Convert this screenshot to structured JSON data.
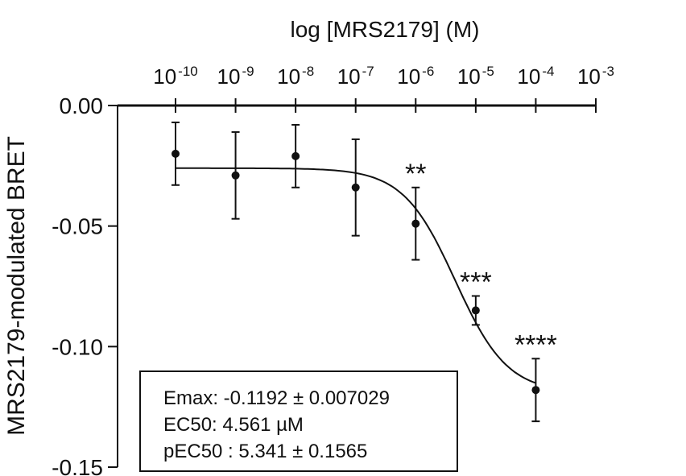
{
  "chart_data": {
    "type": "scatter",
    "xlabel": "log [MRS2179] (M)",
    "ylabel": "MRS2179-modulated BRET",
    "xscale": "log",
    "xlim": [
      -10,
      -3
    ],
    "ylim": [
      -0.15,
      0.0
    ],
    "x_ticks": [
      {
        "base": "10",
        "exp": "-10"
      },
      {
        "base": "10",
        "exp": "-9"
      },
      {
        "base": "10",
        "exp": "-8"
      },
      {
        "base": "10",
        "exp": "-7"
      },
      {
        "base": "10",
        "exp": "-6"
      },
      {
        "base": "10",
        "exp": "-5"
      },
      {
        "base": "10",
        "exp": "-4"
      },
      {
        "base": "10",
        "exp": "-3"
      }
    ],
    "y_ticks": [
      "0.00",
      "-0.05",
      "-0.10",
      "-0.15"
    ],
    "x_axis_position": "top",
    "grid": false,
    "points": [
      {
        "log_x": -10,
        "y": -0.02,
        "err": 0.013,
        "sig": ""
      },
      {
        "log_x": -9,
        "y": -0.029,
        "err": 0.018,
        "sig": ""
      },
      {
        "log_x": -8,
        "y": -0.021,
        "err": 0.013,
        "sig": ""
      },
      {
        "log_x": -7,
        "y": -0.034,
        "err": 0.02,
        "sig": ""
      },
      {
        "log_x": -6,
        "y": -0.049,
        "err": 0.015,
        "sig": "**"
      },
      {
        "log_x": -5,
        "y": -0.085,
        "err": 0.006,
        "sig": "***"
      },
      {
        "log_x": -4,
        "y": -0.118,
        "err": 0.013,
        "sig": "****"
      }
    ],
    "fit": {
      "bottom": -0.1192,
      "top": -0.026,
      "log_ec50": -5.341
    },
    "stats": [
      "Emax: -0.1192 ± 0.007029",
      "EC50: 4.561 µM",
      "pEC50 : 5.341 ± 0.1565"
    ]
  }
}
